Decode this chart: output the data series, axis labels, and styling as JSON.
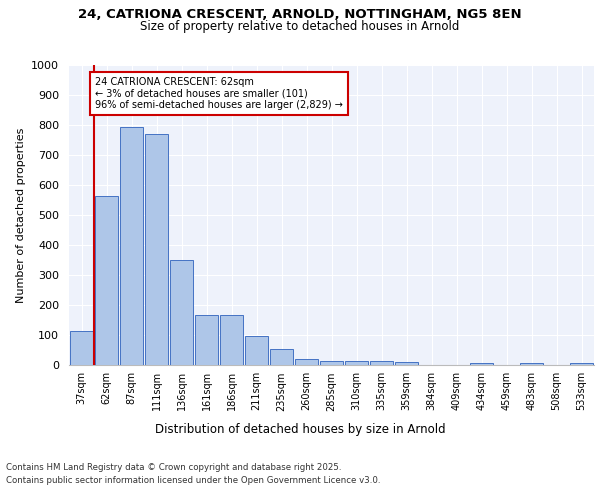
{
  "title1": "24, CATRIONA CRESCENT, ARNOLD, NOTTINGHAM, NG5 8EN",
  "title2": "Size of property relative to detached houses in Arnold",
  "xlabel": "Distribution of detached houses by size in Arnold",
  "ylabel": "Number of detached properties",
  "bins": [
    "37sqm",
    "62sqm",
    "87sqm",
    "111sqm",
    "136sqm",
    "161sqm",
    "186sqm",
    "211sqm",
    "235sqm",
    "260sqm",
    "285sqm",
    "310sqm",
    "335sqm",
    "359sqm",
    "384sqm",
    "409sqm",
    "434sqm",
    "459sqm",
    "483sqm",
    "508sqm",
    "533sqm"
  ],
  "bar_heights": [
    113,
    565,
    793,
    770,
    350,
    168,
    168,
    98,
    55,
    20,
    13,
    12,
    12,
    10,
    0,
    0,
    7,
    0,
    7,
    0,
    7
  ],
  "bar_color": "#aec6e8",
  "bar_edge_color": "#4472c4",
  "bg_color": "#eef2fb",
  "grid_color": "#ffffff",
  "vline_x_index": 1,
  "annotation_text": "24 CATRIONA CRESCENT: 62sqm\n← 3% of detached houses are smaller (101)\n96% of semi-detached houses are larger (2,829) →",
  "annotation_box_color": "#ffffff",
  "annotation_box_edge": "#cc0000",
  "footer_line1": "Contains HM Land Registry data © Crown copyright and database right 2025.",
  "footer_line2": "Contains public sector information licensed under the Open Government Licence v3.0.",
  "ylim": [
    0,
    1000
  ],
  "yticks": [
    0,
    100,
    200,
    300,
    400,
    500,
    600,
    700,
    800,
    900,
    1000
  ]
}
